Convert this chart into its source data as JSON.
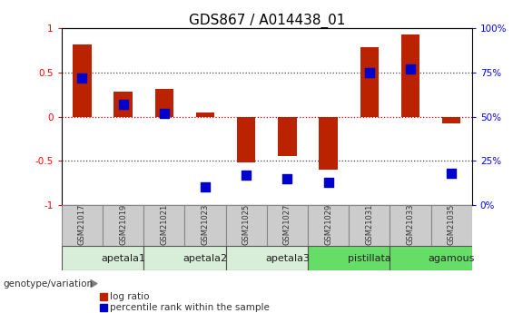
{
  "title": "GDS867 / A014438_01",
  "samples": [
    "GSM21017",
    "GSM21019",
    "GSM21021",
    "GSM21023",
    "GSM21025",
    "GSM21027",
    "GSM21029",
    "GSM21031",
    "GSM21033",
    "GSM21035"
  ],
  "log_ratio": [
    0.82,
    0.28,
    0.31,
    0.05,
    -0.52,
    -0.45,
    -0.6,
    0.78,
    0.93,
    -0.08
  ],
  "percentile_rank_pct": [
    72,
    57,
    52,
    10,
    17,
    15,
    13,
    75,
    77,
    18
  ],
  "groups": [
    {
      "label": "apetala1",
      "start": 0,
      "end": 2,
      "color": "#d8eed8"
    },
    {
      "label": "apetala2",
      "start": 2,
      "end": 4,
      "color": "#d8eed8"
    },
    {
      "label": "apetala3",
      "start": 4,
      "end": 6,
      "color": "#d8eed8"
    },
    {
      "label": "pistillata",
      "start": 6,
      "end": 8,
      "color": "#66dd66"
    },
    {
      "label": "agamous",
      "start": 8,
      "end": 10,
      "color": "#66dd66"
    }
  ],
  "ylim": [
    -1,
    1
  ],
  "bar_color": "#bb2200",
  "dot_color": "#0000cc",
  "bar_width": 0.45,
  "dot_size": 55,
  "hline_color_zero": "#dd0000",
  "hline_color_dotted": "#444444",
  "sample_box_color": "#cccccc",
  "group_label_fontsize": 8,
  "sample_label_fontsize": 6,
  "title_fontsize": 11
}
